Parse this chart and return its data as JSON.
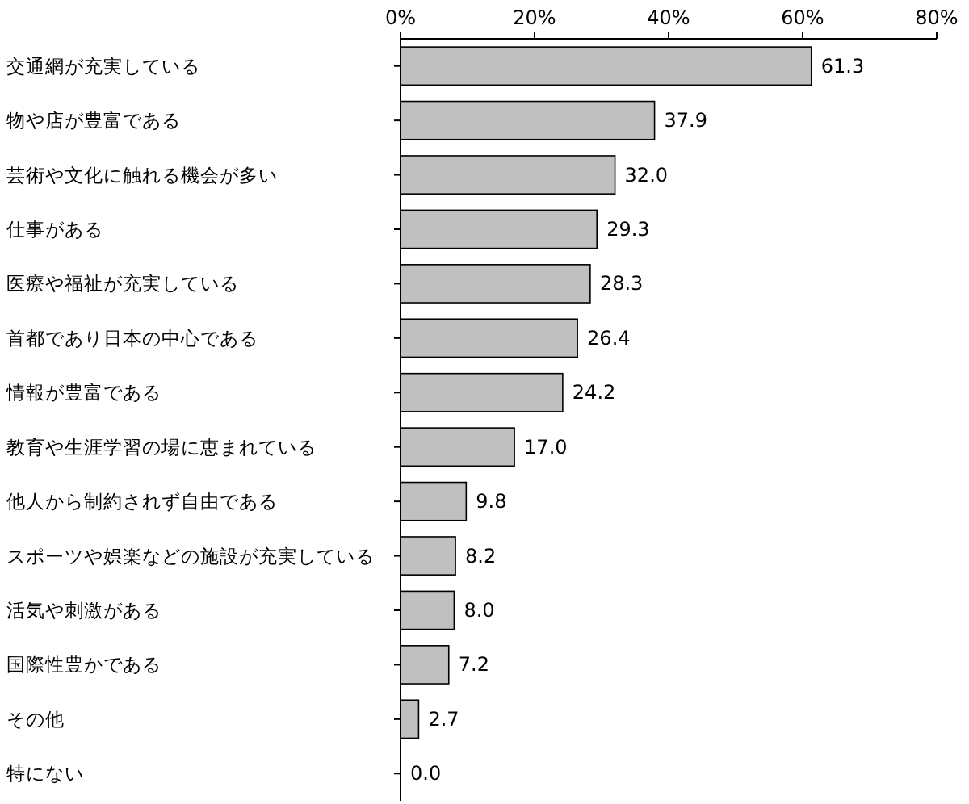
{
  "chart_data": {
    "type": "bar",
    "orientation": "horizontal",
    "categories": [
      "交通網が充実している",
      "物や店が豊富である",
      "芸術や文化に触れる機会が多い",
      "仕事がある",
      "医療や福祉が充実している",
      "首都であり日本の中心である",
      "情報が豊富である",
      "教育や生涯学習の場に恵まれている",
      "他人から制約されず自由である",
      "スポーツや娯楽などの施設が充実している",
      "活気や刺激がある",
      "国際性豊かである",
      "その他",
      "特にない"
    ],
    "values": [
      61.3,
      37.9,
      32.0,
      29.3,
      28.3,
      26.4,
      24.2,
      17.0,
      9.8,
      8.2,
      8.0,
      7.2,
      2.7,
      0.0
    ],
    "value_labels": [
      "61.3",
      "37.9",
      "32.0",
      "29.3",
      "28.3",
      "26.4",
      "24.2",
      "17.0",
      "9.8",
      "8.2",
      "8.0",
      "7.2",
      "2.7",
      "0.0"
    ],
    "color": "#c0c0c0",
    "xlim": [
      0,
      80
    ],
    "xticks": [
      {
        "value": 0,
        "label": "0%"
      },
      {
        "value": 20,
        "label": "20%"
      },
      {
        "value": 40,
        "label": "40%"
      },
      {
        "value": 60,
        "label": "60%"
      },
      {
        "value": 80,
        "label": "80%"
      }
    ],
    "grid": false
  }
}
